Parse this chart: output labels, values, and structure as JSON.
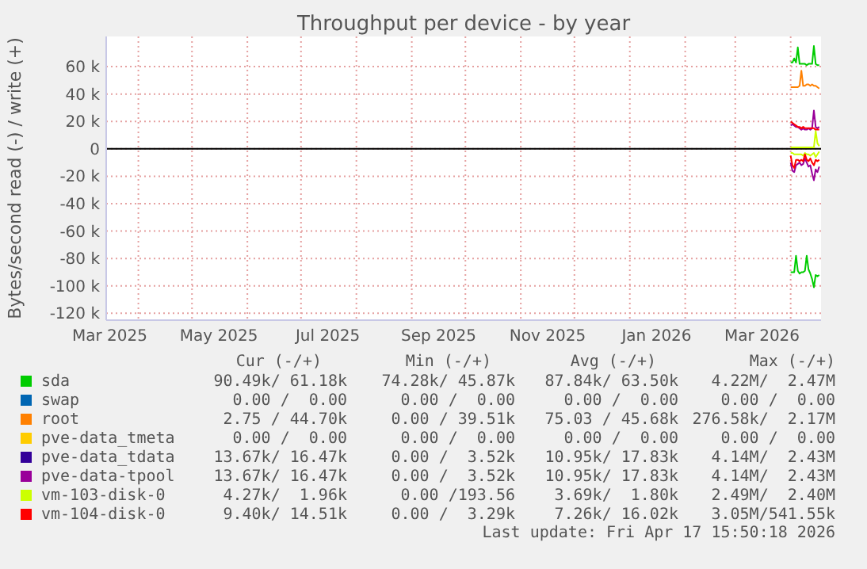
{
  "chart_data": {
    "type": "line",
    "title": "Throughput per device - by year",
    "ylabel": "Bytes/second read (-) / write (+)",
    "x": [
      "2026-04-01",
      "2026-04-02",
      "2026-04-03",
      "2026-04-04",
      "2026-04-05",
      "2026-04-06",
      "2026-04-07",
      "2026-04-08",
      "2026-04-09",
      "2026-04-10",
      "2026-04-11",
      "2026-04-12",
      "2026-04-13",
      "2026-04-14",
      "2026-04-15",
      "2026-04-16",
      "2026-04-17"
    ],
    "xlim": [
      "2025-03-14",
      "2026-04-18"
    ],
    "xticks": [
      {
        "value": "2025-03-16",
        "label": "Mar 2025"
      },
      {
        "value": "2025-05-16",
        "label": "May 2025"
      },
      {
        "value": "2025-07-16",
        "label": "Jul 2025"
      },
      {
        "value": "2025-09-16",
        "label": "Sep 2025"
      },
      {
        "value": "2025-11-16",
        "label": "Nov 2025"
      },
      {
        "value": "2026-01-16",
        "label": "Jan 2026"
      },
      {
        "value": "2026-03-16",
        "label": "Mar 2026"
      },
      {
        "value": "2025-04-01",
        "label": null
      },
      {
        "value": "2025-05-01",
        "label": null
      },
      {
        "value": "2025-06-01",
        "label": null
      },
      {
        "value": "2025-07-01",
        "label": null
      },
      {
        "value": "2025-08-01",
        "label": null
      },
      {
        "value": "2025-09-01",
        "label": null
      },
      {
        "value": "2025-10-01",
        "label": null
      },
      {
        "value": "2025-11-01",
        "label": null
      },
      {
        "value": "2025-12-01",
        "label": null
      },
      {
        "value": "2026-01-01",
        "label": null
      },
      {
        "value": "2026-02-01",
        "label": null
      },
      {
        "value": "2026-03-01",
        "label": null
      },
      {
        "value": "2026-04-01",
        "label": null
      }
    ],
    "ylim": [
      -125000,
      82000
    ],
    "yticks": [
      {
        "value": -120000,
        "label": "-120 k"
      },
      {
        "value": -100000,
        "label": "-100 k"
      },
      {
        "value": -80000,
        "label": "-80 k"
      },
      {
        "value": -60000,
        "label": "-60 k"
      },
      {
        "value": -40000,
        "label": "-40 k"
      },
      {
        "value": -20000,
        "label": "-20 k"
      },
      {
        "value": 0,
        "label": "0"
      },
      {
        "value": 20000,
        "label": "20 k"
      },
      {
        "value": 40000,
        "label": "40 k"
      },
      {
        "value": 60000,
        "label": "60 k"
      }
    ],
    "grid": true,
    "legend": "bottom",
    "series": [
      {
        "name": "sda",
        "color": "#00cc00",
        "values": [
          63000,
          63000,
          66000,
          63000,
          74000,
          62000,
          62000,
          62000,
          62000,
          61000,
          62000,
          62000,
          62000,
          75000,
          62000,
          61000,
          61000
        ]
      },
      {
        "name": "swap",
        "color": "#0066b3",
        "values": [
          null,
          null,
          null,
          null,
          null,
          null,
          null,
          null,
          null,
          null,
          null,
          null,
          null,
          null,
          null,
          null,
          null
        ]
      },
      {
        "name": "root",
        "color": "#ff8000",
        "values": [
          45000,
          45000,
          45000,
          45000,
          45000,
          46000,
          57000,
          46000,
          46000,
          47000,
          47000,
          46000,
          47000,
          46000,
          46000,
          45000,
          44000
        ]
      },
      {
        "name": "pve-data_tmeta",
        "color": "#ffcc00",
        "values": [
          null,
          null,
          null,
          null,
          null,
          null,
          null,
          null,
          null,
          null,
          null,
          null,
          null,
          null,
          null,
          null,
          null
        ]
      },
      {
        "name": "pve-data_tdata",
        "color": "#330099",
        "values": [
          null,
          null,
          null,
          null,
          null,
          null,
          null,
          null,
          null,
          null,
          null,
          null,
          null,
          null,
          null,
          null,
          null
        ]
      },
      {
        "name": "pve-data-tpool",
        "color": "#990099",
        "values": [
          17000,
          18000,
          17000,
          16000,
          16000,
          15000,
          14000,
          15000,
          14000,
          14000,
          15000,
          14000,
          15000,
          28000,
          16000,
          15000,
          16000
        ]
      },
      {
        "name": "vm-103-disk-0",
        "color": "#ccff00",
        "values": [
          1000,
          1000,
          1000,
          1000,
          1000,
          1000,
          1000,
          1000,
          1000,
          1000,
          1000,
          1000,
          1000,
          1000,
          13000,
          4000,
          2000
        ]
      },
      {
        "name": "vm-104-disk-0",
        "color": "#ff0000",
        "values": [
          20000,
          19000,
          18000,
          17000,
          16000,
          16000,
          15000,
          16000,
          15000,
          15000,
          15000,
          15000,
          15000,
          15000,
          14000,
          14000,
          14000
        ]
      },
      {
        "color": "#00cc00",
        "values": [
          -90000,
          -90000,
          -90000,
          -78000,
          -89000,
          -91000,
          -90000,
          -90000,
          -89000,
          -78000,
          -88000,
          -91000,
          -95000,
          -101000,
          -92000,
          -93000,
          -92000
        ]
      },
      {
        "color": "#990099",
        "values": [
          -10000,
          -16000,
          -17000,
          -12000,
          -11000,
          -10000,
          -12000,
          -11000,
          -7000,
          -10000,
          -13000,
          -12000,
          -18000,
          -23000,
          -15000,
          -17000,
          -13000
        ]
      },
      {
        "color": "#ccff00",
        "values": [
          -3000,
          -3000,
          -4000,
          -4000,
          -4000,
          -4000,
          -4000,
          -5000,
          -3000,
          -4000,
          -4000,
          -5000,
          -4000,
          -3000,
          -6000,
          -4000,
          -2000
        ]
      },
      {
        "color": "#ff0000",
        "values": [
          -5000,
          -12000,
          -14000,
          -8000,
          -8000,
          -9000,
          -8000,
          -9000,
          -4000,
          -8000,
          -9000,
          -7000,
          -10000,
          -12000,
          -8000,
          -9000,
          -8000
        ]
      }
    ],
    "annotations": [
      "Cur (-/+)",
      "Min (-/+)",
      "Avg (-/+)",
      "Max (-/+)",
      "90.49k/ 61.18k",
      "74.28k/ 45.87k",
      "87.84k/ 63.50k",
      "4.22M/  2.47M",
      "0.00 /  0.00",
      "0.00 /  0.00",
      "0.00 /  0.00",
      "0.00 /  0.00",
      "2.75 / 44.70k",
      "0.00 / 39.51k",
      "75.03 / 45.68k",
      "276.58k/  2.17M",
      "0.00 /  0.00",
      "0.00 /  0.00",
      "0.00 /  0.00",
      "0.00 /  0.00",
      "13.67k/ 16.47k",
      "0.00 /  3.52k",
      "10.95k/ 17.83k",
      "4.14M/  2.43M",
      "13.67k/ 16.47k",
      "0.00 /  3.52k",
      "10.95k/ 17.83k",
      "4.14M/  2.43M",
      "4.27k/  1.96k",
      "0.00 /193.56",
      "3.69k/  1.80k",
      "2.49M/  2.40M",
      "9.40k/ 14.51k",
      "0.00 /  3.29k",
      "7.26k/ 16.02k",
      "3.05M/541.55k",
      "Last update: Fri Apr 17 15:50:18 2026"
    ]
  }
}
